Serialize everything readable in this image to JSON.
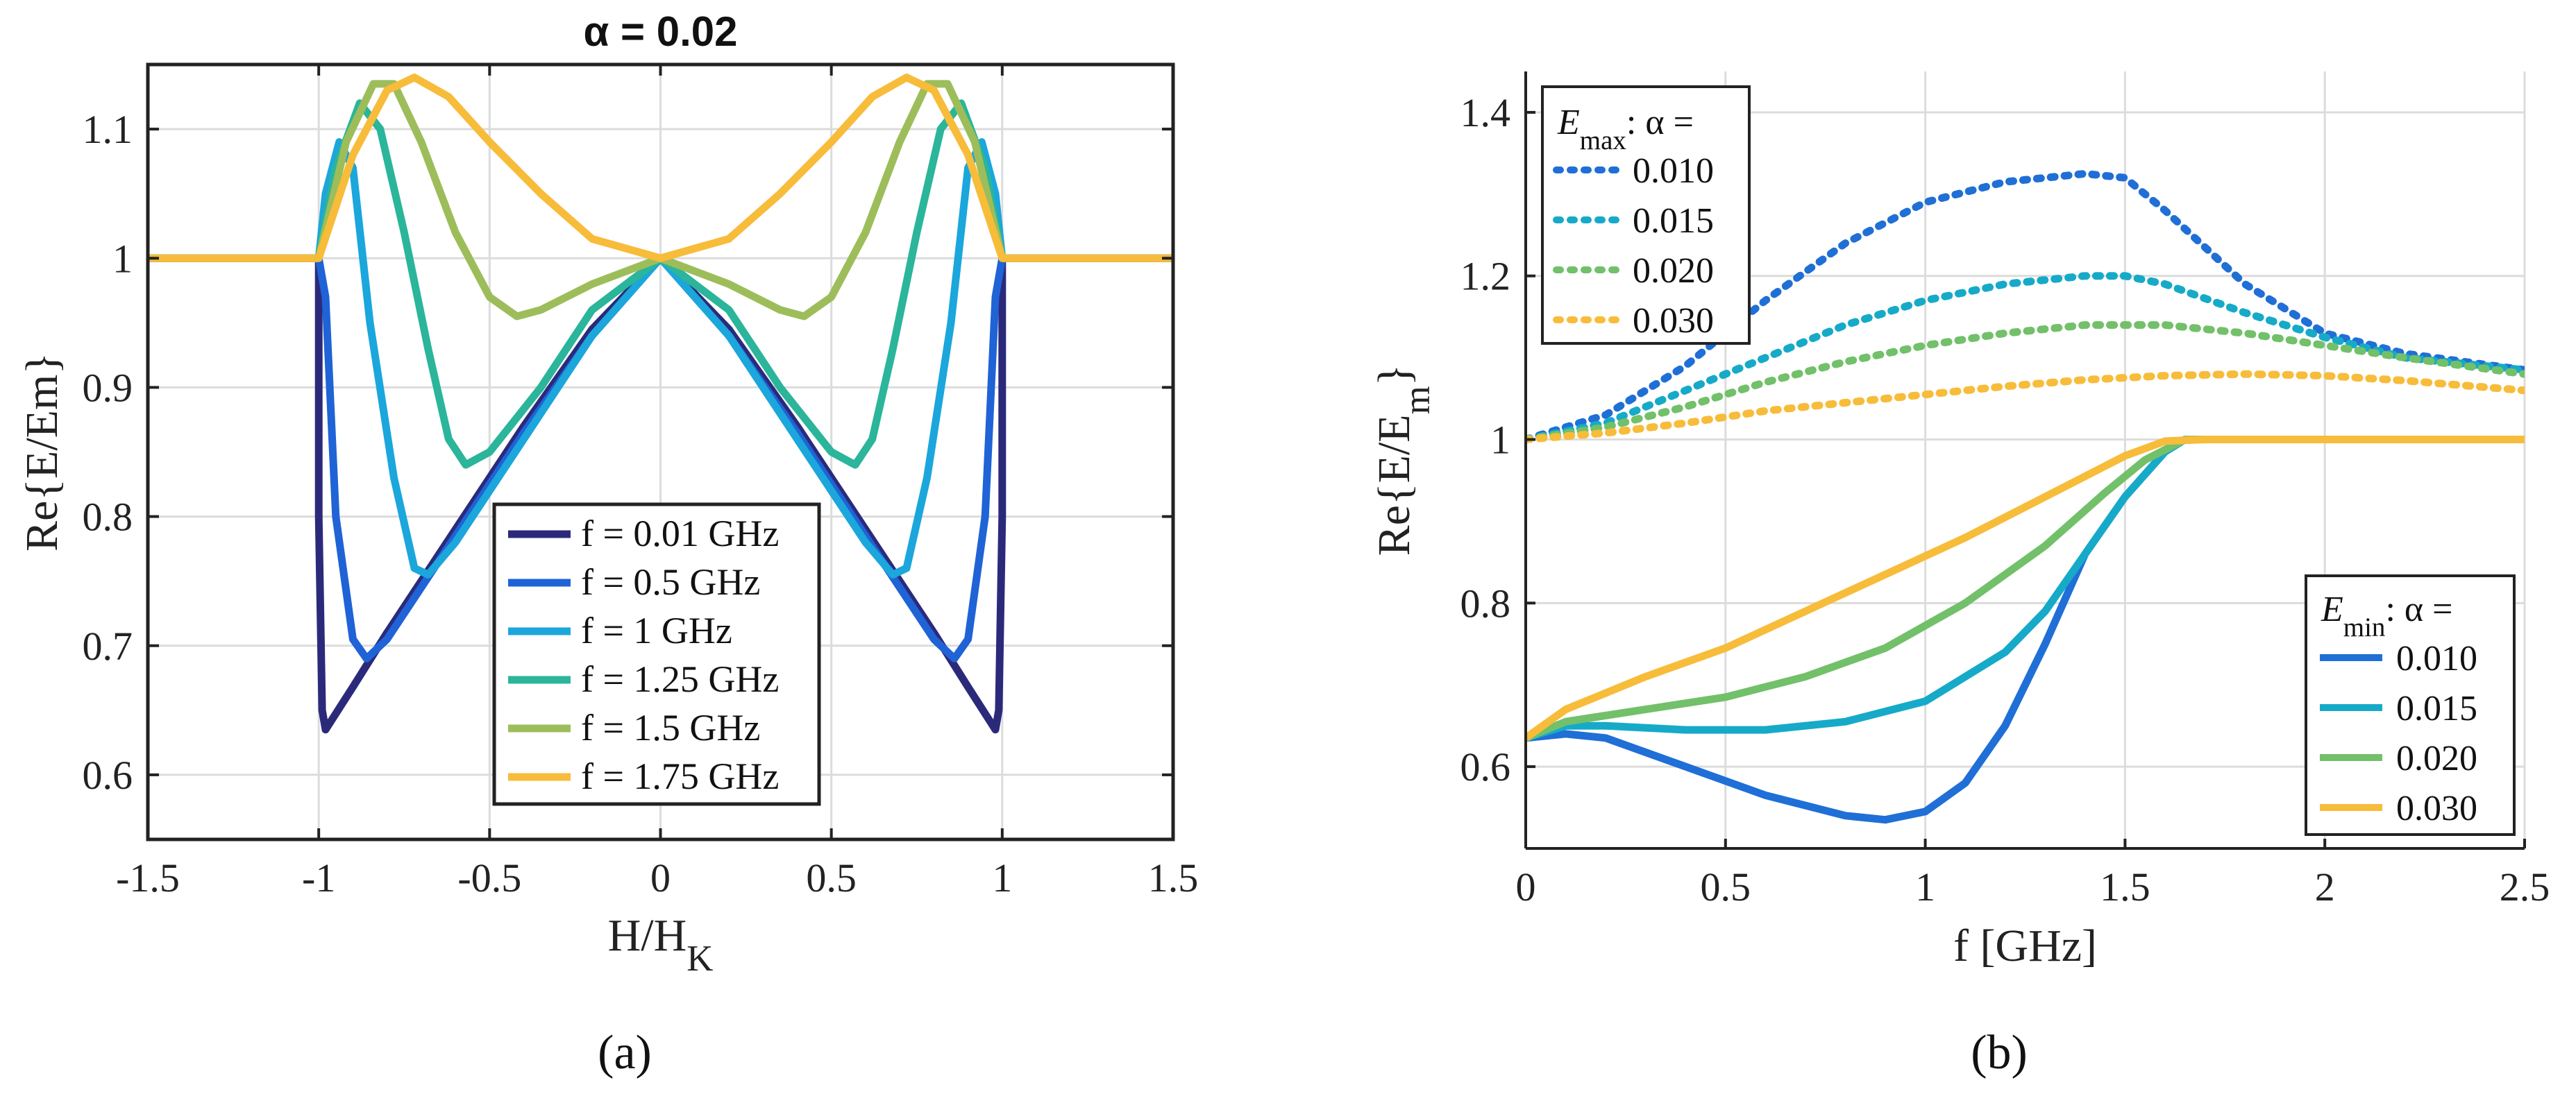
{
  "chart_data": [
    {
      "type": "line",
      "title": "α = 0.02",
      "xlabel": "H/H",
      "xlabel_sub": "K",
      "ylabel": "Re{E/Em}",
      "xlim": [
        -1.5,
        1.5
      ],
      "ylim": [
        0.55,
        1.15
      ],
      "xticks": [
        "-1.5",
        "-1",
        "-0.5",
        "0",
        "0.5",
        "1",
        "1.5"
      ],
      "yticks": [
        "0.6",
        "0.7",
        "0.8",
        "0.9",
        "1",
        "1.1"
      ],
      "grid": true,
      "legend": "bottom-center",
      "panel_label": "(a)",
      "series": [
        {
          "name": "f = 0.01 GHz",
          "color": "#2b2a7a",
          "points": [
            [
              -1.5,
              1
            ],
            [
              -1,
              1
            ],
            [
              -1.0,
              0.8
            ],
            [
              -0.99,
              0.65
            ],
            [
              -0.98,
              0.635
            ],
            [
              -0.9,
              0.668
            ],
            [
              -0.8,
              0.71
            ],
            [
              -0.6,
              0.79
            ],
            [
              -0.4,
              0.87
            ],
            [
              -0.2,
              0.945
            ],
            [
              0,
              1
            ],
            [
              0.2,
              0.945
            ],
            [
              0.4,
              0.87
            ],
            [
              0.6,
              0.79
            ],
            [
              0.8,
              0.71
            ],
            [
              0.9,
              0.668
            ],
            [
              0.98,
              0.635
            ],
            [
              0.99,
              0.65
            ],
            [
              1.0,
              0.8
            ],
            [
              1,
              1
            ],
            [
              1.5,
              1
            ]
          ]
        },
        {
          "name": "f = 0.5 GHz",
          "color": "#1f63d6",
          "points": [
            [
              -1.5,
              1
            ],
            [
              -1,
              1
            ],
            [
              -0.98,
              0.97
            ],
            [
              -0.95,
              0.8
            ],
            [
              -0.9,
              0.705
            ],
            [
              -0.86,
              0.69
            ],
            [
              -0.8,
              0.705
            ],
            [
              -0.6,
              0.785
            ],
            [
              -0.4,
              0.865
            ],
            [
              -0.2,
              0.94
            ],
            [
              0,
              1
            ],
            [
              0.2,
              0.94
            ],
            [
              0.4,
              0.865
            ],
            [
              0.6,
              0.785
            ],
            [
              0.8,
              0.705
            ],
            [
              0.86,
              0.69
            ],
            [
              0.9,
              0.705
            ],
            [
              0.95,
              0.8
            ],
            [
              0.98,
              0.97
            ],
            [
              1,
              1
            ],
            [
              1.5,
              1
            ]
          ]
        },
        {
          "name": "f = 1 GHz",
          "color": "#1ba6dc",
          "points": [
            [
              -1.5,
              1
            ],
            [
              -1,
              1
            ],
            [
              -0.98,
              1.05
            ],
            [
              -0.94,
              1.09
            ],
            [
              -0.9,
              1.07
            ],
            [
              -0.85,
              0.95
            ],
            [
              -0.78,
              0.83
            ],
            [
              -0.72,
              0.76
            ],
            [
              -0.68,
              0.755
            ],
            [
              -0.6,
              0.78
            ],
            [
              -0.4,
              0.86
            ],
            [
              -0.2,
              0.94
            ],
            [
              0,
              1
            ],
            [
              0.2,
              0.94
            ],
            [
              0.4,
              0.86
            ],
            [
              0.6,
              0.78
            ],
            [
              0.68,
              0.755
            ],
            [
              0.72,
              0.76
            ],
            [
              0.78,
              0.83
            ],
            [
              0.85,
              0.95
            ],
            [
              0.9,
              1.07
            ],
            [
              0.94,
              1.09
            ],
            [
              0.98,
              1.05
            ],
            [
              1,
              1
            ],
            [
              1.5,
              1
            ]
          ]
        },
        {
          "name": "f = 1.25 GHz",
          "color": "#2bb59a",
          "points": [
            [
              -1.5,
              1
            ],
            [
              -1,
              1
            ],
            [
              -0.95,
              1.07
            ],
            [
              -0.88,
              1.12
            ],
            [
              -0.82,
              1.1
            ],
            [
              -0.75,
              1.02
            ],
            [
              -0.68,
              0.93
            ],
            [
              -0.62,
              0.86
            ],
            [
              -0.57,
              0.84
            ],
            [
              -0.5,
              0.85
            ],
            [
              -0.35,
              0.9
            ],
            [
              -0.2,
              0.96
            ],
            [
              0,
              1
            ],
            [
              0.2,
              0.96
            ],
            [
              0.35,
              0.9
            ],
            [
              0.5,
              0.85
            ],
            [
              0.57,
              0.84
            ],
            [
              0.62,
              0.86
            ],
            [
              0.68,
              0.93
            ],
            [
              0.75,
              1.02
            ],
            [
              0.82,
              1.1
            ],
            [
              0.88,
              1.12
            ],
            [
              0.95,
              1.07
            ],
            [
              1,
              1
            ],
            [
              1.5,
              1
            ]
          ]
        },
        {
          "name": "f = 1.5 GHz",
          "color": "#9dbd5a",
          "points": [
            [
              -1.5,
              1
            ],
            [
              -1,
              1
            ],
            [
              -0.92,
              1.09
            ],
            [
              -0.84,
              1.135
            ],
            [
              -0.78,
              1.135
            ],
            [
              -0.7,
              1.09
            ],
            [
              -0.6,
              1.02
            ],
            [
              -0.5,
              0.97
            ],
            [
              -0.42,
              0.955
            ],
            [
              -0.35,
              0.96
            ],
            [
              -0.2,
              0.98
            ],
            [
              0,
              1
            ],
            [
              0.2,
              0.98
            ],
            [
              0.35,
              0.96
            ],
            [
              0.42,
              0.955
            ],
            [
              0.5,
              0.97
            ],
            [
              0.6,
              1.02
            ],
            [
              0.7,
              1.09
            ],
            [
              0.78,
              1.135
            ],
            [
              0.84,
              1.135
            ],
            [
              0.92,
              1.09
            ],
            [
              1,
              1
            ],
            [
              1.5,
              1
            ]
          ]
        },
        {
          "name": "f = 1.75 GHz",
          "color": "#f7bc3a",
          "points": [
            [
              -1.5,
              1
            ],
            [
              -1,
              1
            ],
            [
              -0.9,
              1.08
            ],
            [
              -0.8,
              1.13
            ],
            [
              -0.72,
              1.14
            ],
            [
              -0.62,
              1.125
            ],
            [
              -0.5,
              1.09
            ],
            [
              -0.35,
              1.05
            ],
            [
              -0.2,
              1.015
            ],
            [
              0,
              1
            ],
            [
              0.2,
              1.015
            ],
            [
              0.35,
              1.05
            ],
            [
              0.5,
              1.09
            ],
            [
              0.62,
              1.125
            ],
            [
              0.72,
              1.14
            ],
            [
              0.8,
              1.13
            ],
            [
              0.9,
              1.08
            ],
            [
              1,
              1
            ],
            [
              1.5,
              1
            ]
          ]
        }
      ]
    },
    {
      "type": "line",
      "xlabel": "f [GHz]",
      "ylabel": "Re{E/E",
      "ylabel_sub": "m",
      "ylabel_end": "}",
      "xlim": [
        0,
        2.5
      ],
      "ylim": [
        0.5,
        1.45
      ],
      "xticks": [
        "0",
        "0.5",
        "1",
        "1.5",
        "2",
        "2.5"
      ],
      "yticks": [
        "0.6",
        "0.8",
        "1",
        "1.2",
        "1.4"
      ],
      "grid": true,
      "panel_label": "(b)",
      "legend_max": {
        "title": "E",
        "title_sub": "max",
        "title_rest": ": α =",
        "placement": "top-left"
      },
      "legend_min": {
        "title": "E",
        "title_sub": "min",
        "title_rest": ": α =",
        "placement": "bottom-right"
      },
      "series_max": [
        {
          "name": "0.010",
          "color": "#1f6fd6",
          "style": "dotted",
          "points": [
            [
              0,
              1
            ],
            [
              0.2,
              1.03
            ],
            [
              0.4,
              1.09
            ],
            [
              0.6,
              1.17
            ],
            [
              0.8,
              1.24
            ],
            [
              1.0,
              1.29
            ],
            [
              1.2,
              1.315
            ],
            [
              1.4,
              1.325
            ],
            [
              1.5,
              1.32
            ],
            [
              1.6,
              1.28
            ],
            [
              1.8,
              1.19
            ],
            [
              2.0,
              1.13
            ],
            [
              2.2,
              1.105
            ],
            [
              2.5,
              1.085
            ]
          ]
        },
        {
          "name": "0.015",
          "color": "#16aac8",
          "style": "dotted",
          "points": [
            [
              0,
              1
            ],
            [
              0.2,
              1.02
            ],
            [
              0.4,
              1.06
            ],
            [
              0.6,
              1.1
            ],
            [
              0.8,
              1.14
            ],
            [
              1.0,
              1.17
            ],
            [
              1.2,
              1.19
            ],
            [
              1.4,
              1.2
            ],
            [
              1.5,
              1.2
            ],
            [
              1.6,
              1.19
            ],
            [
              1.8,
              1.155
            ],
            [
              2.0,
              1.125
            ],
            [
              2.2,
              1.1
            ],
            [
              2.5,
              1.085
            ]
          ]
        },
        {
          "name": "0.020",
          "color": "#72c06a",
          "style": "dotted",
          "points": [
            [
              0,
              1
            ],
            [
              0.2,
              1.015
            ],
            [
              0.4,
              1.04
            ],
            [
              0.6,
              1.07
            ],
            [
              0.8,
              1.095
            ],
            [
              1.0,
              1.115
            ],
            [
              1.2,
              1.13
            ],
            [
              1.4,
              1.14
            ],
            [
              1.6,
              1.14
            ],
            [
              1.8,
              1.13
            ],
            [
              2.0,
              1.115
            ],
            [
              2.2,
              1.1
            ],
            [
              2.5,
              1.08
            ]
          ]
        },
        {
          "name": "0.030",
          "color": "#f7bc3a",
          "style": "dotted",
          "points": [
            [
              0,
              1
            ],
            [
              0.2,
              1.008
            ],
            [
              0.4,
              1.02
            ],
            [
              0.6,
              1.035
            ],
            [
              0.8,
              1.045
            ],
            [
              1.0,
              1.055
            ],
            [
              1.2,
              1.065
            ],
            [
              1.4,
              1.073
            ],
            [
              1.6,
              1.078
            ],
            [
              1.8,
              1.08
            ],
            [
              2.0,
              1.078
            ],
            [
              2.2,
              1.072
            ],
            [
              2.5,
              1.06
            ]
          ]
        }
      ],
      "series_min": [
        {
          "name": "0.010",
          "color": "#1f6fd6",
          "style": "solid",
          "points": [
            [
              0,
              0.635
            ],
            [
              0.1,
              0.64
            ],
            [
              0.2,
              0.635
            ],
            [
              0.4,
              0.6
            ],
            [
              0.6,
              0.565
            ],
            [
              0.8,
              0.54
            ],
            [
              0.9,
              0.535
            ],
            [
              1.0,
              0.545
            ],
            [
              1.1,
              0.58
            ],
            [
              1.2,
              0.65
            ],
            [
              1.3,
              0.75
            ],
            [
              1.4,
              0.86
            ],
            [
              1.5,
              0.93
            ],
            [
              1.6,
              0.985
            ],
            [
              1.65,
              1
            ],
            [
              2.5,
              1
            ]
          ]
        },
        {
          "name": "0.015",
          "color": "#16aac8",
          "style": "solid",
          "points": [
            [
              0,
              0.635
            ],
            [
              0.1,
              0.65
            ],
            [
              0.2,
              0.65
            ],
            [
              0.4,
              0.645
            ],
            [
              0.6,
              0.645
            ],
            [
              0.8,
              0.655
            ],
            [
              1.0,
              0.68
            ],
            [
              1.2,
              0.74
            ],
            [
              1.3,
              0.79
            ],
            [
              1.4,
              0.86
            ],
            [
              1.5,
              0.93
            ],
            [
              1.6,
              0.985
            ],
            [
              1.65,
              1
            ],
            [
              2.5,
              1
            ]
          ]
        },
        {
          "name": "0.020",
          "color": "#72c06a",
          "style": "solid",
          "points": [
            [
              0,
              0.635
            ],
            [
              0.1,
              0.655
            ],
            [
              0.3,
              0.67
            ],
            [
              0.5,
              0.685
            ],
            [
              0.7,
              0.71
            ],
            [
              0.9,
              0.745
            ],
            [
              1.1,
              0.8
            ],
            [
              1.3,
              0.87
            ],
            [
              1.45,
              0.935
            ],
            [
              1.55,
              0.975
            ],
            [
              1.65,
              1
            ],
            [
              2.5,
              1
            ]
          ]
        },
        {
          "name": "0.030",
          "color": "#f7bc3a",
          "style": "solid",
          "points": [
            [
              0,
              0.635
            ],
            [
              0.1,
              0.67
            ],
            [
              0.3,
              0.71
            ],
            [
              0.5,
              0.745
            ],
            [
              0.7,
              0.79
            ],
            [
              0.9,
              0.835
            ],
            [
              1.1,
              0.88
            ],
            [
              1.3,
              0.93
            ],
            [
              1.5,
              0.98
            ],
            [
              1.6,
              0.998
            ],
            [
              1.7,
              1
            ],
            [
              2.5,
              1
            ]
          ]
        }
      ]
    }
  ]
}
